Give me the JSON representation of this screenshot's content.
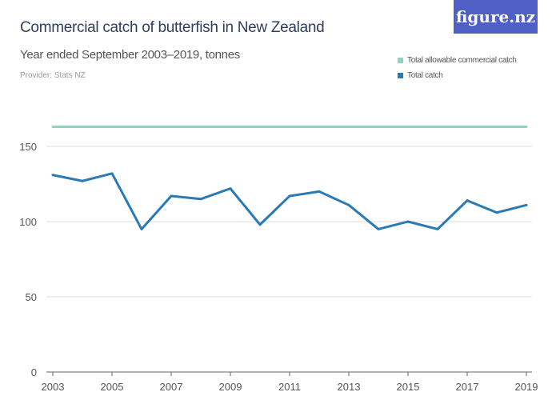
{
  "title": "Commercial catch of butterfish in New Zealand",
  "subtitle": "Year ended September 2003–2019, tonnes",
  "provider": "Provider: Stats NZ",
  "logo": "figure.nz",
  "chart_data": {
    "type": "line",
    "x": [
      2003,
      2004,
      2005,
      2006,
      2007,
      2008,
      2009,
      2010,
      2011,
      2012,
      2013,
      2014,
      2015,
      2016,
      2017,
      2018,
      2019
    ],
    "x_ticks": [
      "2003",
      "2005",
      "2007",
      "2009",
      "2011",
      "2013",
      "2015",
      "2017",
      "2019"
    ],
    "y_ticks": [
      "0",
      "50",
      "100",
      "150"
    ],
    "ylim": [
      0,
      170
    ],
    "grid": true,
    "legend_position": "top-right",
    "series": [
      {
        "name": "Total allowable commercial catch",
        "color": "#8fd4bb",
        "values": [
          163,
          163,
          163,
          163,
          163,
          163,
          163,
          163,
          163,
          163,
          163,
          163,
          163,
          163,
          163,
          163,
          163
        ]
      },
      {
        "name": "Total catch",
        "color": "#2a7ab5",
        "values": [
          131,
          127,
          132,
          95,
          117,
          115,
          122,
          98,
          117,
          120,
          111,
          95,
          100,
          95,
          114,
          106,
          111
        ]
      }
    ]
  }
}
